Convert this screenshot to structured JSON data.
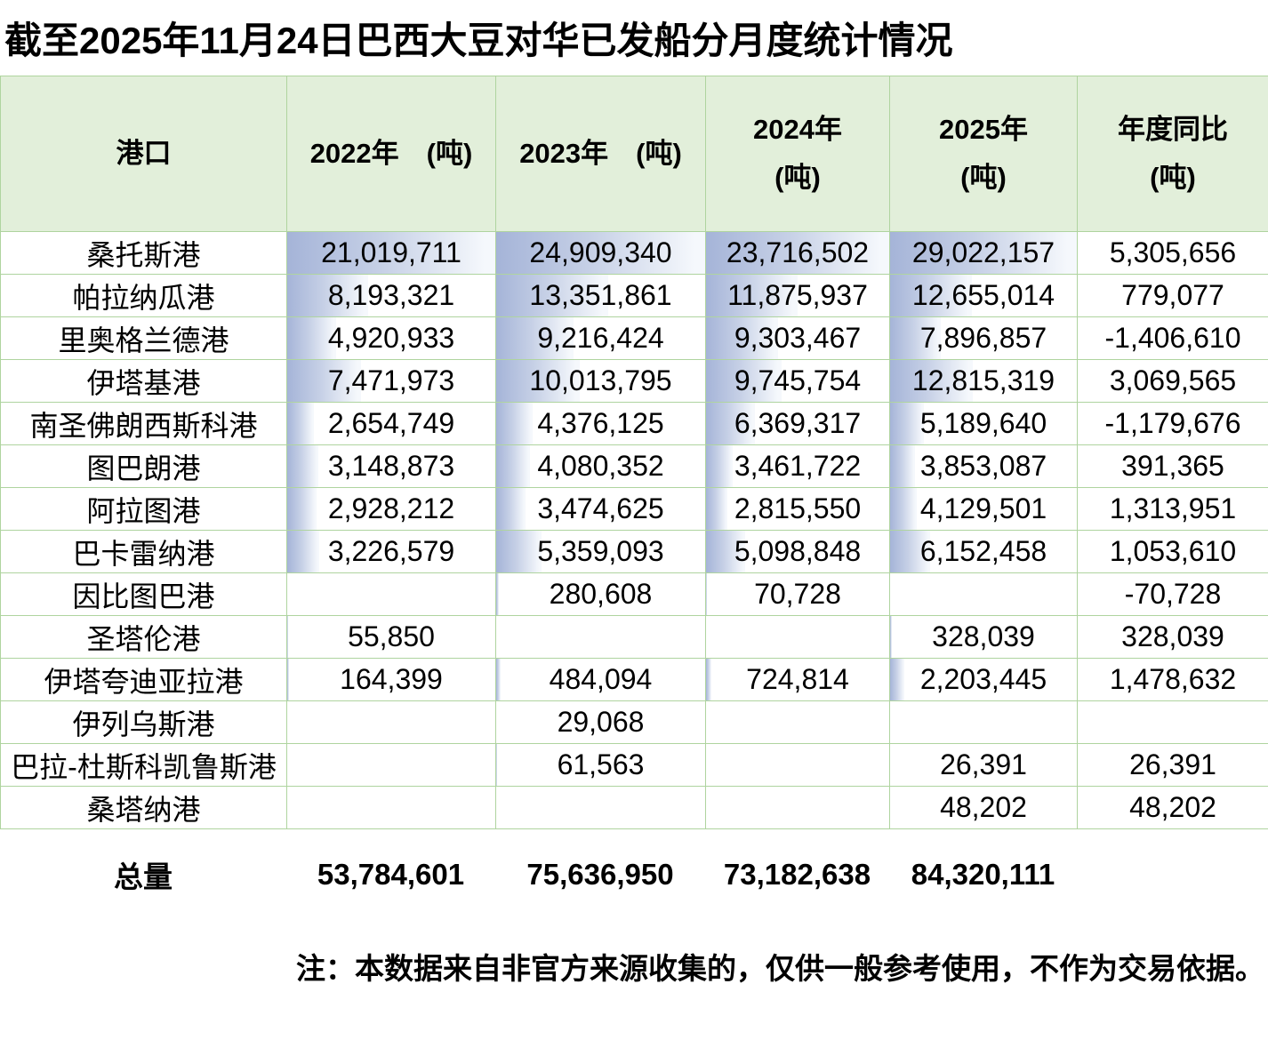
{
  "title": "截至2025年11月24日巴西大豆对华已发船分月度统计情况",
  "chart_data": {
    "type": "table",
    "title": "截至2025年11月24日巴西大豆对华已发船分月度统计情况",
    "columns": [
      {
        "id": "port",
        "label": "港口"
      },
      {
        "id": "y2022",
        "label": "2022年　(吨)"
      },
      {
        "id": "y2023",
        "label": "2023年　(吨)"
      },
      {
        "id": "y2024",
        "label": "2024年\n(吨)"
      },
      {
        "id": "y2025",
        "label": "2025年\n(吨)"
      },
      {
        "id": "yoy",
        "label": "年度同比\n(吨)"
      }
    ],
    "rows": [
      {
        "port": "桑托斯港",
        "values": [
          "21,019,711",
          "24,909,340",
          "23,716,502",
          "29,022,157",
          "5,305,656"
        ]
      },
      {
        "port": "帕拉纳瓜港",
        "values": [
          "8,193,321",
          "13,351,861",
          "11,875,937",
          "12,655,014",
          "779,077"
        ]
      },
      {
        "port": "里奥格兰德港",
        "values": [
          "4,920,933",
          "9,216,424",
          "9,303,467",
          "7,896,857",
          "-1,406,610"
        ]
      },
      {
        "port": "伊塔基港",
        "values": [
          "7,471,973",
          "10,013,795",
          "9,745,754",
          "12,815,319",
          "3,069,565"
        ]
      },
      {
        "port": "南圣佛朗西斯科港",
        "values": [
          "2,654,749",
          "4,376,125",
          "6,369,317",
          "5,189,640",
          "-1,179,676"
        ]
      },
      {
        "port": "图巴朗港",
        "values": [
          "3,148,873",
          "4,080,352",
          "3,461,722",
          "3,853,087",
          "391,365"
        ]
      },
      {
        "port": "阿拉图港",
        "values": [
          "2,928,212",
          "3,474,625",
          "2,815,550",
          "4,129,501",
          "1,313,951"
        ]
      },
      {
        "port": "巴卡雷纳港",
        "values": [
          "3,226,579",
          "5,359,093",
          "5,098,848",
          "6,152,458",
          "1,053,610"
        ]
      },
      {
        "port": "因比图巴港",
        "values": [
          "",
          "280,608",
          "70,728",
          "",
          "-70,728"
        ]
      },
      {
        "port": "圣塔伦港",
        "values": [
          "55,850",
          "",
          "",
          "328,039",
          "328,039"
        ]
      },
      {
        "port": "伊塔夸迪亚拉港",
        "values": [
          "164,399",
          "484,094",
          "724,814",
          "2,203,445",
          "1,478,632"
        ]
      },
      {
        "port": "伊列乌斯港",
        "values": [
          "",
          "29,068",
          "",
          "",
          ""
        ]
      },
      {
        "port": "巴拉-杜斯科凯鲁斯港",
        "values": [
          "",
          "61,563",
          "",
          "26,391",
          "26,391"
        ]
      },
      {
        "port": "桑塔纳港",
        "values": [
          "",
          "",
          "",
          "48,202",
          "48,202"
        ]
      }
    ],
    "totals": {
      "label": "总量",
      "values": [
        "53,784,601",
        "75,636,950",
        "73,182,638",
        "84,320,111",
        ""
      ]
    },
    "note": "注：本数据来自非官方来源收集的，仅供一般参考使用，不作为交易依据。"
  },
  "colors": {
    "header_bg": "#e2efda",
    "grid_line": "#afd49f",
    "bar_from": "#a5b4d8",
    "bar_mid": "#c6d0e6",
    "bar_to": "#f5f8fc"
  }
}
